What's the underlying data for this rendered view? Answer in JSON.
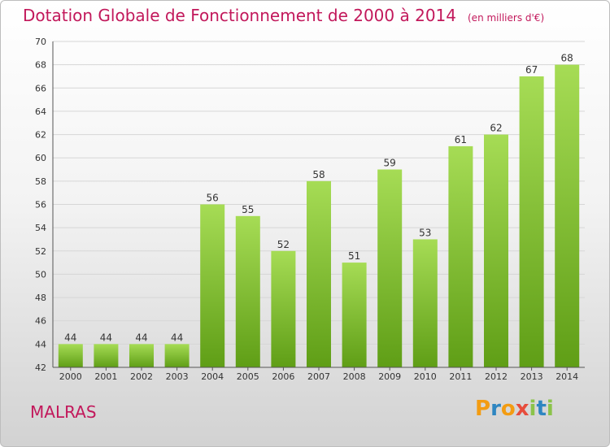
{
  "title": "Dotation Globale de Fonctionnement de 2000 à 2014",
  "unit": "(en milliers d'€)",
  "commune": "MALRAS",
  "logo": {
    "letters": [
      "P",
      "r",
      "o",
      "x",
      "i",
      "t",
      "i"
    ],
    "colors": [
      "#f39c12",
      "#2e86c1",
      "#f39c12",
      "#e74c3c",
      "#8bc34a",
      "#2e86c1",
      "#8bc34a"
    ]
  },
  "colors": {
    "bar_light": "#a6dc55",
    "bar_dark": "#5f9e16",
    "title": "#c2185b"
  },
  "chart_data": {
    "type": "bar",
    "title": "Dotation Globale de Fonctionnement de 2000 à 2014",
    "subtitle": "(en milliers d'€)",
    "xlabel": "",
    "ylabel": "",
    "categories": [
      "2000",
      "2001",
      "2002",
      "2003",
      "2004",
      "2005",
      "2006",
      "2007",
      "2008",
      "2009",
      "2010",
      "2011",
      "2012",
      "2013",
      "2014"
    ],
    "values": [
      44,
      44,
      44,
      44,
      56,
      55,
      52,
      58,
      51,
      59,
      53,
      61,
      62,
      67,
      68
    ],
    "ylim": [
      42,
      70
    ],
    "yticks": [
      42,
      44,
      46,
      48,
      50,
      52,
      54,
      56,
      58,
      60,
      62,
      64,
      66,
      68,
      70
    ],
    "grid": true,
    "legend": "none"
  }
}
